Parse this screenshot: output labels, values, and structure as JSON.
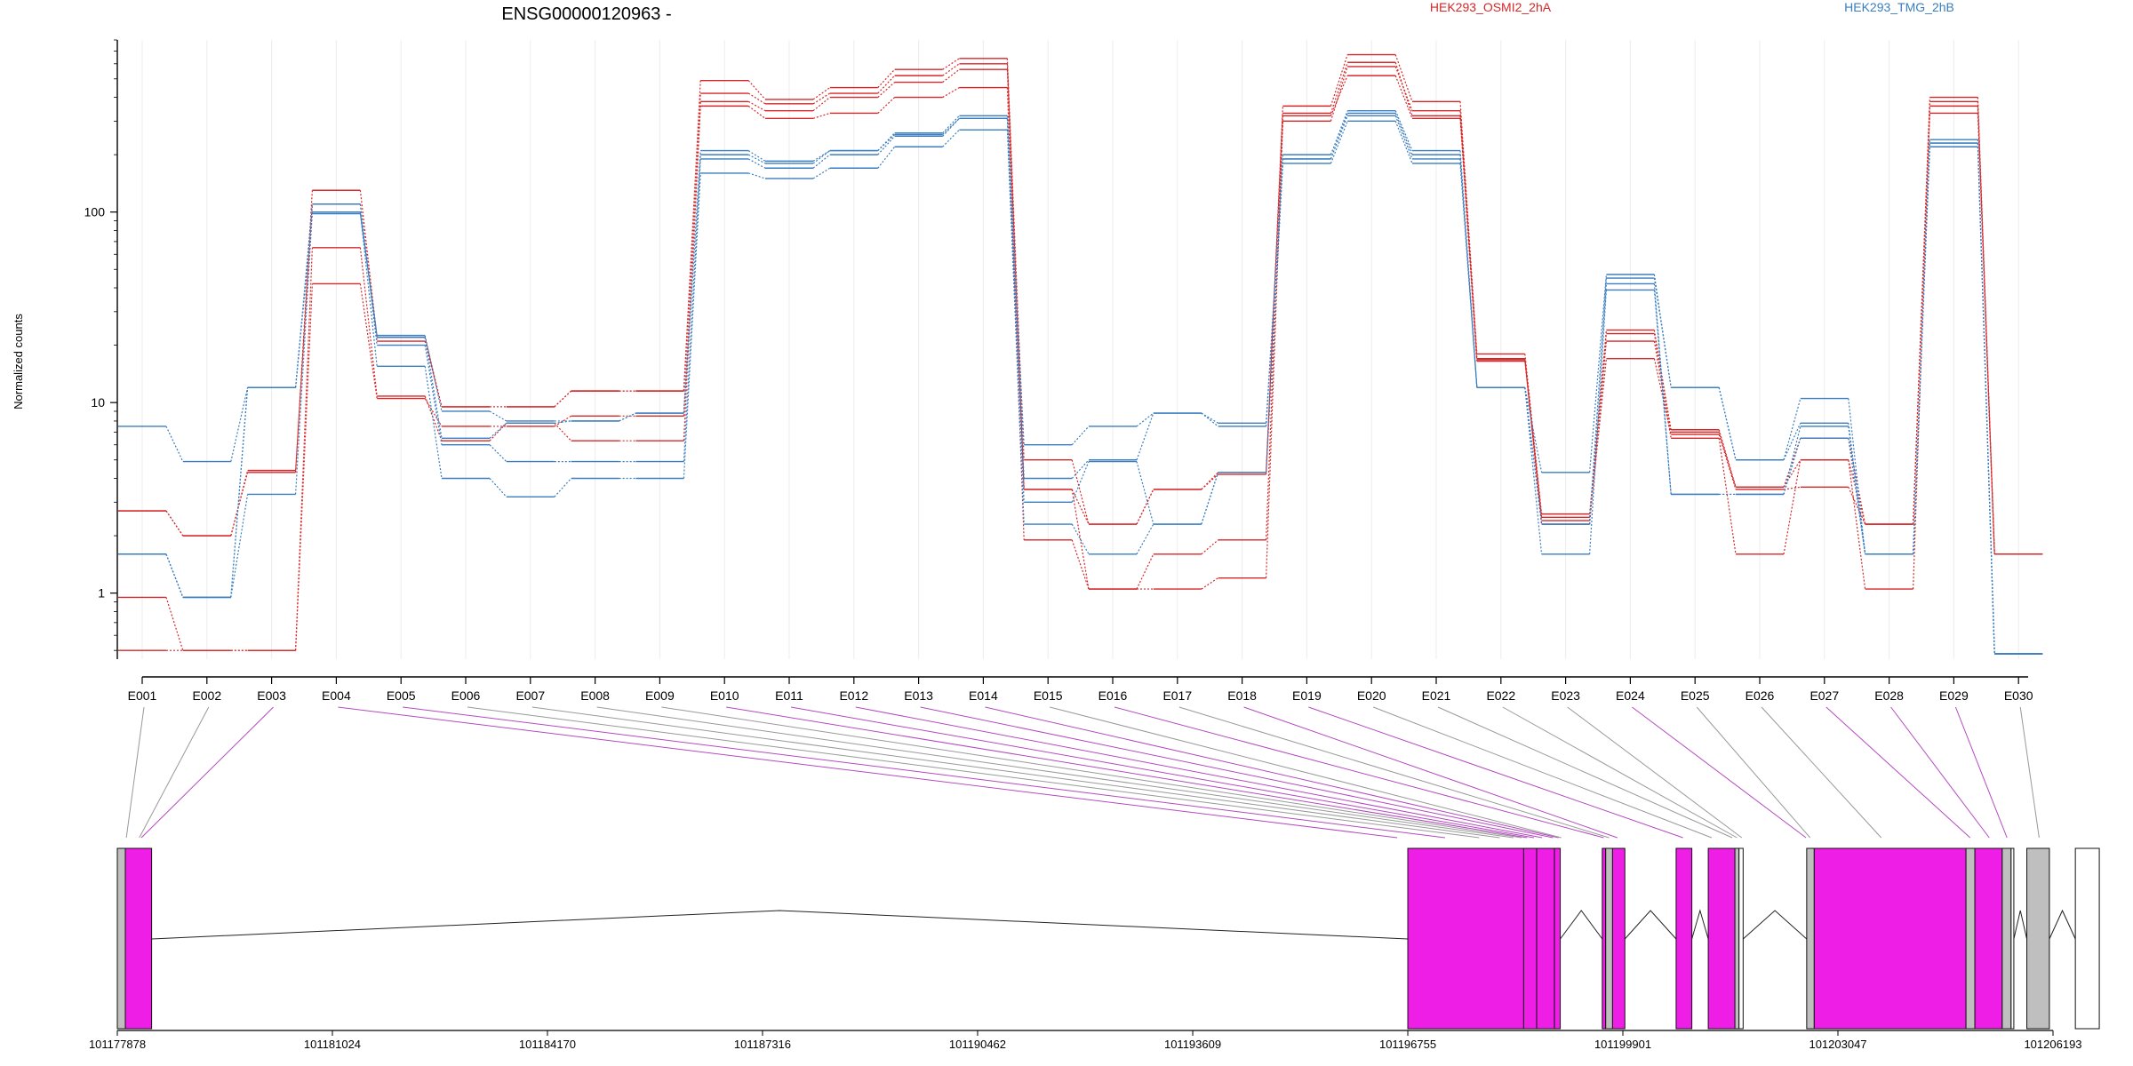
{
  "chart_data": {
    "type": "line",
    "title": "ENSG00000120963 -",
    "ylabel": "Normalized counts",
    "xlabel": "",
    "yscale": "log",
    "ylim": [
      0.45,
      800
    ],
    "y_ticks": [
      1,
      10,
      100
    ],
    "y_tick_labels": [
      "1",
      "10",
      "100"
    ],
    "grid": "vertical",
    "legend": [
      {
        "label": "HEK293_OSMI2_2hA",
        "color": "#d62728"
      },
      {
        "label": "HEK293_TMG_2hB",
        "color": "#3a7ebf"
      }
    ],
    "categories": [
      "E001",
      "E002",
      "E003",
      "E004",
      "E005",
      "E006",
      "E007",
      "E008",
      "E009",
      "E010",
      "E011",
      "E012",
      "E013",
      "E014",
      "E015",
      "E016",
      "E017",
      "E018",
      "E019",
      "E020",
      "E021",
      "E022",
      "E023",
      "E024",
      "E025",
      "E026",
      "E027",
      "E028",
      "E029",
      "E030"
    ],
    "series": [
      {
        "group": "HEK293_OSMI2_2hA",
        "color": "#d62728",
        "values": [
          2.7,
          2.0,
          4.3,
          130,
          22,
          9.5,
          9.5,
          11.5,
          11.5,
          490,
          390,
          450,
          560,
          640,
          5.0,
          2.3,
          3.5,
          4.2,
          360,
          670,
          380,
          18,
          2.6,
          23,
          7.0,
          3.6,
          6.5,
          2.3,
          400,
          1.6
        ]
      },
      {
        "group": "HEK293_OSMI2_2hA",
        "color": "#d62728",
        "values": [
          0.95,
          0.5,
          0.5,
          42,
          10.5,
          7.5,
          7.5,
          8.5,
          8.5,
          380,
          340,
          400,
          480,
          560,
          3.5,
          1.05,
          1.05,
          1.2,
          300,
          580,
          340,
          17,
          2.3,
          21,
          6.5,
          1.6,
          5.0,
          1.05,
          360,
          1.6
        ]
      },
      {
        "group": "HEK293_OSMI2_2hA",
        "color": "#d62728",
        "values": [
          0.5,
          0.5,
          0.5,
          65,
          10.8,
          6.3,
          7.8,
          6.3,
          6.3,
          360,
          310,
          330,
          400,
          450,
          1.9,
          1.05,
          1.6,
          1.9,
          320,
          520,
          310,
          16.5,
          2.4,
          17,
          6.8,
          3.5,
          3.6,
          2.3,
          330,
          1.6
        ]
      },
      {
        "group": "HEK293_OSMI2_2hA",
        "color": "#d62728",
        "values": [
          2.7,
          2.0,
          4.4,
          110,
          21,
          9.5,
          9.5,
          11.5,
          11.5,
          420,
          370,
          420,
          520,
          600,
          3.5,
          2.3,
          3.5,
          4.3,
          330,
          610,
          320,
          16.8,
          2.5,
          24,
          7.2,
          3.6,
          5.0,
          2.3,
          380,
          1.6
        ]
      },
      {
        "group": "HEK293_TMG_2hB",
        "color": "#3a7ebf",
        "values": [
          7.5,
          4.9,
          12,
          98,
          22.5,
          9.0,
          8.0,
          8.0,
          8.8,
          210,
          185,
          210,
          260,
          320,
          6.0,
          7.5,
          8.8,
          7.5,
          200,
          340,
          210,
          12,
          4.3,
          47,
          12,
          5.0,
          10.5,
          1.6,
          240,
          0.48
        ]
      },
      {
        "group": "HEK293_TMG_2hB",
        "color": "#3a7ebf",
        "values": [
          1.6,
          0.95,
          3.3,
          100,
          15.5,
          4.0,
          3.2,
          4.0,
          4.0,
          160,
          150,
          170,
          220,
          270,
          2.3,
          1.6,
          2.3,
          4.3,
          180,
          300,
          180,
          12,
          1.6,
          39,
          3.3,
          3.3,
          6.5,
          1.6,
          220,
          0.48
        ]
      },
      {
        "group": "HEK293_TMG_2hB",
        "color": "#3a7ebf",
        "values": [
          1.6,
          0.95,
          12,
          110,
          20,
          6.0,
          4.9,
          4.9,
          4.9,
          190,
          170,
          200,
          250,
          310,
          3.0,
          4.9,
          2.3,
          4.3,
          190,
          320,
          190,
          12,
          2.3,
          42,
          3.3,
          3.3,
          7.5,
          1.6,
          230,
          0.48
        ]
      },
      {
        "group": "HEK293_TMG_2hB",
        "color": "#3a7ebf",
        "values": [
          1.6,
          0.95,
          12,
          100,
          22,
          6.5,
          7.8,
          8.0,
          8.8,
          200,
          180,
          210,
          255,
          310,
          4.0,
          5.0,
          8.8,
          7.8,
          190,
          330,
          200,
          12,
          2.3,
          45,
          12,
          5.0,
          7.8,
          1.6,
          230,
          0.48
        ]
      }
    ],
    "gene_model": {
      "coordinate_labels": [
        "101177878",
        "101181024",
        "101184170",
        "101187316",
        "101190462",
        "101193609",
        "101196755",
        "101199901",
        "101203047",
        "101206193"
      ],
      "exons": [
        {
          "start": 101177878,
          "end": 101177995,
          "fill": "#bfbfbf"
        },
        {
          "start": 101177995,
          "end": 101178380,
          "fill": "#ee1ee6"
        },
        {
          "start": 101196755,
          "end": 101198450,
          "fill": "#ee1ee6"
        },
        {
          "start": 101198450,
          "end": 101198640,
          "fill": "#ee1ee6"
        },
        {
          "start": 101198640,
          "end": 101198900,
          "fill": "#ee1ee6"
        },
        {
          "start": 101198900,
          "end": 101198985,
          "fill": "#ee1ee6"
        },
        {
          "start": 101199600,
          "end": 101199650,
          "fill": "#ee1ee6"
        },
        {
          "start": 101199650,
          "end": 101199750,
          "fill": "#bfbfbf"
        },
        {
          "start": 101199750,
          "end": 101199930,
          "fill": "#ee1ee6"
        },
        {
          "start": 101200680,
          "end": 101200910,
          "fill": "#ee1ee6"
        },
        {
          "start": 101201150,
          "end": 101201540,
          "fill": "#ee1ee6"
        },
        {
          "start": 101201540,
          "end": 101201600,
          "fill": "#bfbfbf"
        },
        {
          "start": 101201600,
          "end": 101201660,
          "fill": "#ffffff"
        },
        {
          "start": 101202590,
          "end": 101202700,
          "fill": "#bfbfbf"
        },
        {
          "start": 101202700,
          "end": 101204920,
          "fill": "#ee1ee6"
        },
        {
          "start": 101204920,
          "end": 101205050,
          "fill": "#bfbfbf"
        },
        {
          "start": 101205050,
          "end": 101205450,
          "fill": "#ee1ee6"
        },
        {
          "start": 101205450,
          "end": 101205580,
          "fill": "#bfbfbf"
        },
        {
          "start": 101205580,
          "end": 101205620,
          "fill": "#ffffff"
        },
        {
          "start": 101205810,
          "end": 101206140,
          "fill": "#bfbfbf"
        },
        {
          "start": 101206520,
          "end": 101206870,
          "fill": "#ffffff"
        }
      ],
      "exon_connections": [
        {
          "exon": "E001",
          "position": 101178010,
          "tested": false
        },
        {
          "exon": "E002",
          "position": 101178200,
          "tested": false
        },
        {
          "exon": "E003",
          "position": 101178230,
          "tested": true
        },
        {
          "exon": "E004",
          "position": 101196600,
          "tested": true
        },
        {
          "exon": "E005",
          "position": 101197300,
          "tested": true
        },
        {
          "exon": "E006",
          "position": 101197800,
          "tested": false
        },
        {
          "exon": "E007",
          "position": 101198100,
          "tested": false
        },
        {
          "exon": "E008",
          "position": 101198300,
          "tested": false
        },
        {
          "exon": "E009",
          "position": 101198420,
          "tested": false
        },
        {
          "exon": "E010",
          "position": 101198500,
          "tested": true
        },
        {
          "exon": "E011",
          "position": 101198600,
          "tested": true
        },
        {
          "exon": "E012",
          "position": 101198720,
          "tested": true
        },
        {
          "exon": "E013",
          "position": 101198880,
          "tested": true
        },
        {
          "exon": "E014",
          "position": 101198960,
          "tested": true
        },
        {
          "exon": "E015",
          "position": 101199000,
          "tested": false
        },
        {
          "exon": "E016",
          "position": 101199620,
          "tested": true
        },
        {
          "exon": "E017",
          "position": 101199700,
          "tested": false
        },
        {
          "exon": "E018",
          "position": 101199820,
          "tested": true
        },
        {
          "exon": "E019",
          "position": 101200780,
          "tested": true
        },
        {
          "exon": "E020",
          "position": 101201200,
          "tested": false
        },
        {
          "exon": "E021",
          "position": 101201500,
          "tested": false
        },
        {
          "exon": "E022",
          "position": 101201570,
          "tested": false
        },
        {
          "exon": "E023",
          "position": 101201640,
          "tested": false
        },
        {
          "exon": "E024",
          "position": 101202580,
          "tested": true
        },
        {
          "exon": "E025",
          "position": 101202640,
          "tested": false
        },
        {
          "exon": "E026",
          "position": 101203680,
          "tested": false
        },
        {
          "exon": "E027",
          "position": 101204980,
          "tested": true
        },
        {
          "exon": "E028",
          "position": 101205260,
          "tested": true
        },
        {
          "exon": "E029",
          "position": 101205520,
          "tested": true
        },
        {
          "exon": "E030",
          "position": 101205990,
          "tested": false
        }
      ]
    }
  },
  "colors": {
    "group_a": "#d62728",
    "group_b": "#3a7ebf",
    "tested_exon": "#ee1ee6",
    "untested_exon": "#bfbfbf",
    "connector_tested": "#b44ac0",
    "connector_untested": "#999999"
  }
}
